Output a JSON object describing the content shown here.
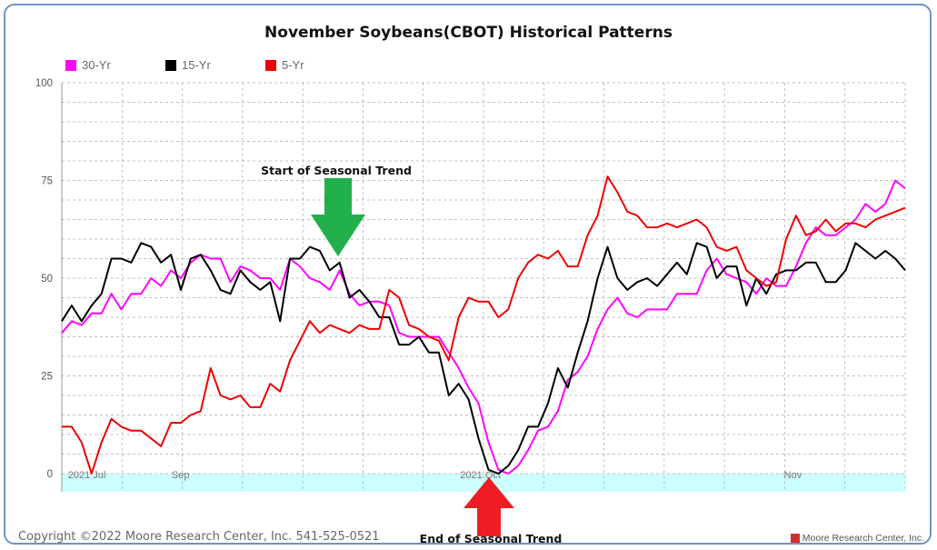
{
  "title": "November Soybeans(CBOT) Historical Patterns",
  "copyright": "Copyright ©2022 Moore Research Center, Inc. 541-525-0521",
  "brand": "Moore Research Center, Inc.",
  "annotations": {
    "start": "Start of Seasonal Trend",
    "end": "End of Seasonal Trend"
  },
  "colors": {
    "thirty_yr": "#ff00ff",
    "fifteen_yr": "#000000",
    "five_yr": "#ee0000",
    "highlight": "#ccffff",
    "start_arrow": "#21b04b",
    "end_arrow": "#ee1c25",
    "frame": "#6f93c9"
  },
  "chart_data": {
    "type": "line",
    "title": "November Soybeans(CBOT) Historical Patterns",
    "xlabel": "",
    "ylabel": "",
    "ylim": [
      0,
      100
    ],
    "yticks": [
      0,
      25,
      50,
      75,
      100
    ],
    "x_ticks": [
      "2021 Jul",
      "Sep",
      "2021 Oct",
      "Nov"
    ],
    "grid": true,
    "legend_position": "top-left",
    "series": [
      {
        "name": "30-Yr",
        "values": [
          36,
          39,
          38,
          41,
          41,
          46,
          42,
          46,
          46,
          50,
          48,
          52,
          50,
          54,
          56,
          55,
          55,
          49,
          53,
          52,
          50,
          50,
          47,
          55,
          53,
          50,
          49,
          47,
          52,
          46,
          43,
          44,
          44,
          43,
          36,
          35,
          35,
          35,
          35,
          31,
          27,
          22,
          18,
          8,
          1,
          0,
          2,
          6,
          11,
          12,
          16,
          24,
          26,
          30,
          37,
          42,
          45,
          41,
          40,
          42,
          42,
          42,
          46,
          46,
          46,
          52,
          55,
          51,
          50,
          49,
          46,
          50,
          48,
          48,
          53,
          59,
          63,
          61,
          61,
          63,
          65,
          69,
          67,
          69,
          75,
          73
        ]
      },
      {
        "name": "15-Yr",
        "values": [
          39,
          43,
          39,
          43,
          46,
          55,
          55,
          54,
          59,
          58,
          54,
          56,
          47,
          55,
          56,
          52,
          47,
          46,
          52,
          49,
          47,
          49,
          39,
          55,
          55,
          58,
          57,
          52,
          54,
          45,
          47,
          44,
          40,
          40,
          33,
          33,
          35,
          31,
          31,
          20,
          23,
          19,
          9,
          1,
          0,
          2,
          6,
          12,
          12,
          18,
          27,
          22,
          31,
          39,
          50,
          58,
          50,
          47,
          49,
          50,
          48,
          51,
          54,
          51,
          59,
          58,
          50,
          53,
          53,
          43,
          50,
          46,
          51,
          52,
          52,
          54,
          54,
          49,
          49,
          52,
          59,
          57,
          55,
          57,
          55,
          52
        ]
      },
      {
        "name": "5-Yr",
        "values": [
          12,
          12,
          8,
          0,
          8,
          14,
          12,
          11,
          11,
          9,
          7,
          13,
          13,
          15,
          16,
          27,
          20,
          19,
          20,
          17,
          17,
          23,
          21,
          29,
          34,
          39,
          36,
          38,
          37,
          36,
          38,
          37,
          37,
          47,
          45,
          38,
          37,
          35,
          34,
          29,
          40,
          45,
          44,
          44,
          40,
          42,
          50,
          54,
          56,
          55,
          57,
          53,
          53,
          61,
          66,
          76,
          72,
          67,
          66,
          63,
          63,
          64,
          63,
          64,
          65,
          63,
          58,
          57,
          58,
          52,
          50,
          48,
          49,
          60,
          66,
          61,
          62,
          65,
          62,
          64,
          64,
          63,
          65,
          66,
          67,
          68
        ]
      }
    ]
  }
}
